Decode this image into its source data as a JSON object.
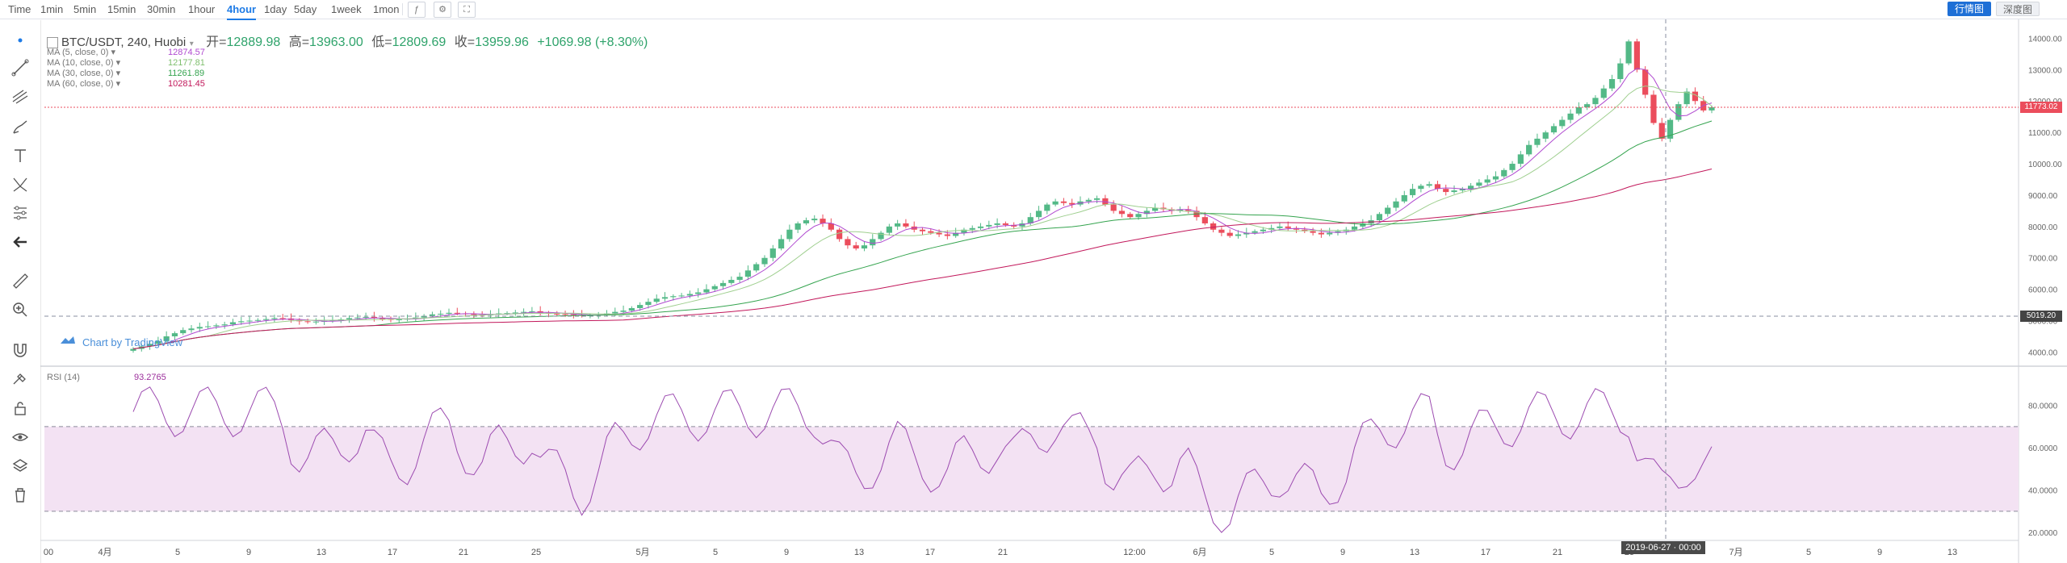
{
  "toolbar": {
    "intervals": [
      "Time",
      "1min",
      "5min",
      "15min",
      "30min",
      "1hour",
      "4hour",
      "1day",
      "5day",
      "1week",
      "1mon"
    ],
    "active_interval": "4hour",
    "candles_label": "行情图",
    "depth_label": "深度图"
  },
  "legend": {
    "symbol": "BTC/USDT, 240, Huobi",
    "open_label": "开=",
    "open": "12889.98",
    "high_label": "高=",
    "high": "13963.00",
    "low_label": "低=",
    "low": "12809.69",
    "close_label": "收=",
    "close": "13959.96",
    "change": "+1069.98 (+8.30%)"
  },
  "ma_studies": [
    {
      "label": "MA (5, close, 0)",
      "value": "12874.57",
      "color": "#b04ad0"
    },
    {
      "label": "MA (10, close, 0)",
      "value": "12177.81",
      "color": "#7fbf6e"
    },
    {
      "label": "MA (30, close, 0)",
      "value": "11261.89",
      "color": "#35a44f"
    },
    {
      "label": "MA (60, close, 0)",
      "value": "10281.45",
      "color": "#c2185b"
    }
  ],
  "rsi": {
    "label": "RSI (14)",
    "value": "93.2765"
  },
  "price_tags": {
    "last": "11773.02",
    "crosshair": "5019.20"
  },
  "crosshair_time": "2019-06-27 · 00:00",
  "watermark": "Chart by TradingView",
  "colors": {
    "up": "#53b987",
    "down": "#eb4d5c",
    "rsi": "#9c4bb0",
    "rsi_band": "#f3e2f3",
    "active": "#1e7be6"
  },
  "icons": [
    "dot-icon",
    "trend-line-icon",
    "pitchfork-icon",
    "brush-icon",
    "text-icon",
    "pattern-icon",
    "measure-icon",
    "back-arrow-icon",
    "ruler-icon",
    "zoom-icon",
    "magnet-icon",
    "lock-drawing-icon",
    "unlock-icon",
    "eye-icon",
    "layers-icon",
    "trash-icon"
  ],
  "chart_data": {
    "type": "candlestick",
    "price_axis": [
      "14000.00",
      "13000.00",
      "12000.00",
      "11000.00",
      "10000.00",
      "9000.00",
      "8000.00",
      "7000.00",
      "6000.00",
      "5000.00",
      "4000.00"
    ],
    "rsi_axis": [
      "80.0000",
      "60.0000",
      "40.0000",
      "20.0000"
    ],
    "time_axis": [
      "00",
      "4月",
      "5",
      "9",
      "13",
      "17",
      "21",
      "25",
      "5月",
      "5",
      "9",
      "13",
      "17",
      "21",
      "12:00",
      "6月",
      "5",
      "9",
      "13",
      "17",
      "21",
      "25",
      "7月",
      "5",
      "9",
      "13"
    ],
    "rsi_bands": [
      70,
      30
    ],
    "price_range": [
      3600,
      14500
    ],
    "rsi_range": [
      17,
      97
    ],
    "series_close": [
      4100,
      4180,
      4260,
      4350,
      4500,
      4600,
      4700,
      4750,
      4800,
      4820,
      4850,
      4880,
      4950,
      4980,
      5000,
      5020,
      5050,
      5080,
      5070,
      5020,
      4980,
      4960,
      4970,
      4990,
      5010,
      5040,
      5080,
      5100,
      5120,
      5080,
      5050,
      5030,
      5040,
      5060,
      5100,
      5150,
      5200,
      5220,
      5250,
      5230,
      5210,
      5190,
      5170,
      5200,
      5230,
      5240,
      5260,
      5280,
      5300,
      5250,
      5220,
      5210,
      5200,
      5180,
      5160,
      5170,
      5190,
      5230,
      5280,
      5320,
      5400,
      5500,
      5600,
      5700,
      5750,
      5780,
      5800,
      5850,
      5900,
      6000,
      6100,
      6200,
      6300,
      6400,
      6600,
      6800,
      7000,
      7300,
      7600,
      7900,
      8100,
      8200,
      8250,
      8100,
      7900,
      7600,
      7400,
      7300,
      7400,
      7600,
      7800,
      8000,
      8100,
      8000,
      7900,
      7850,
      7800,
      7750,
      7700,
      7800,
      7900,
      7950,
      8000,
      8050,
      8100,
      8050,
      8000,
      8100,
      8300,
      8500,
      8700,
      8800,
      8750,
      8700,
      8800,
      8850,
      8900,
      8700,
      8500,
      8400,
      8300,
      8400,
      8500,
      8600,
      8550,
      8500,
      8550,
      8500,
      8300,
      8100,
      7900,
      7800,
      7700,
      7750,
      7800,
      7850,
      7900,
      7950,
      8000,
      7950,
      7900,
      7850,
      7800,
      7750,
      7800,
      7850,
      7900,
      8000,
      8100,
      8200,
      8400,
      8600,
      8800,
      9000,
      9200,
      9300,
      9350,
      9200,
      9100,
      9150,
      9200,
      9300,
      9400,
      9500,
      9600,
      9800,
      10000,
      10300,
      10600,
      10800,
      11000,
      11200,
      11400,
      11600,
      11800,
      11900,
      12100,
      12400,
      12700,
      13200,
      13900,
      13000,
      12200,
      11300,
      10800,
      11400,
      11900,
      12300,
      12000,
      11700,
      11800
    ]
  }
}
